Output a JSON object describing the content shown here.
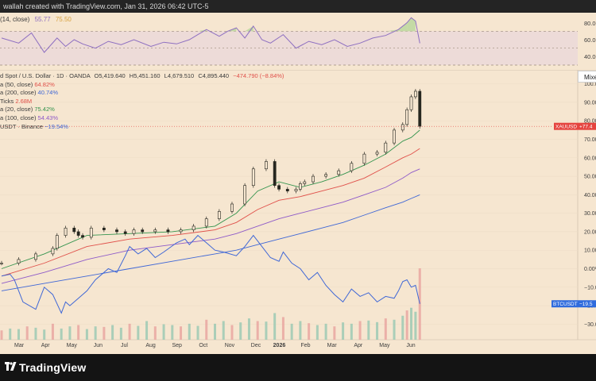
{
  "header": {
    "text": "wallah created with TradingView.com, Jan 31, 2026 06:42 UTC-5"
  },
  "rsi_panel": {
    "label": "(14, close)",
    "value": "55.77",
    "value2": "75.50",
    "axis": [
      "80.00",
      "60.00",
      "40.00"
    ],
    "colors": {
      "line": "#8e6fc1",
      "band": "#eddbd8",
      "overbought": "#b8d79a"
    }
  },
  "legend": {
    "main": {
      "name": "d Spot / U.S. Dollar · 1D · OANDA",
      "o_label": "O",
      "o": "5,419.640",
      "h_label": "H",
      "h": "5,451.160",
      "l_label": "L",
      "l": "4,679.510",
      "c_label": "C",
      "c": "4,895.440",
      "chg": "−474.790 (−8.84%)"
    },
    "ma50": {
      "name": "a (50, close)",
      "value": "64.82%",
      "color": "#e0504a"
    },
    "ma200": {
      "name": "a (200, close)",
      "value": "40.74%",
      "color": "#3f67d6"
    },
    "vol": {
      "name": "Ticks",
      "value": "2.68M",
      "color": "#e0504a"
    },
    "ma20": {
      "name": "a (20, close)",
      "value": "75.42%",
      "color": "#34944e"
    },
    "ma100": {
      "name": "a (100, close)",
      "value": "54.43%",
      "color": "#8e5ac8"
    },
    "btc": {
      "name": "USDT · Binance",
      "value": "−19.54%",
      "color": "#3f67d6"
    }
  },
  "toolbar": {
    "mixed": "Mixe"
  },
  "price_axis": [
    "100.00%",
    "90.00%",
    "80.00%",
    "70.00%",
    "60.00%",
    "50.00%",
    "40.00%",
    "30.00%",
    "20.00%",
    "10.00%",
    "0.00%",
    "−10.00%",
    "−20.00%",
    "−30.00%"
  ],
  "badges": {
    "xau": {
      "label": "XAUUSD",
      "value": "+77.4",
      "color": "#e5443f"
    },
    "btc": {
      "label": "BTCUSDT",
      "value": "−19.5",
      "color": "#2f6bdd"
    }
  },
  "time_axis": [
    "Mar",
    "Apr",
    "May",
    "Jun",
    "Jul",
    "Aug",
    "Sep",
    "Oct",
    "Nov",
    "Dec",
    "2026",
    "Feb",
    "Mar",
    "Apr",
    "May",
    "Jun"
  ],
  "footer": {
    "brand": "TradingView"
  },
  "chart_data": {
    "type": "line",
    "title": "",
    "x_axis_labels": [
      "Mar",
      "Apr",
      "May",
      "Jun",
      "Jul",
      "Aug",
      "Sep",
      "Oct",
      "Nov",
      "Dec",
      "2026",
      "Feb",
      "Mar",
      "Apr",
      "May",
      "Jun"
    ],
    "y_unit": "%",
    "ylim": [
      -35,
      105
    ],
    "y_ticks": [
      100,
      90,
      80,
      70,
      60,
      50,
      40,
      30,
      20,
      10,
      0,
      -10,
      -20,
      -30
    ],
    "x_domain": [
      0,
      100
    ],
    "series": [
      {
        "name": "XAUUSD",
        "kind": "candles",
        "color_up": "#26261f",
        "color_down": "#26261f",
        "x": [
          0,
          4,
          8,
          12,
          13,
          15,
          17,
          18,
          19,
          21,
          24,
          27,
          29,
          31,
          33,
          36,
          39,
          42,
          45,
          48,
          51,
          54,
          57,
          59,
          62,
          64,
          65,
          67,
          69,
          70,
          71,
          73,
          76,
          79,
          82,
          85,
          88,
          90,
          92,
          94,
          95,
          96,
          97,
          98
        ],
        "values": [
          3,
          5,
          8,
          11,
          18,
          22,
          20,
          18,
          17,
          22,
          21,
          20,
          19,
          21,
          20,
          21,
          20,
          21,
          23,
          27,
          31,
          35,
          45,
          54,
          58,
          45,
          43,
          42,
          43,
          46,
          47,
          50,
          51,
          53,
          57,
          62,
          63,
          68,
          75,
          78,
          86,
          93,
          96,
          77
        ]
      },
      {
        "name": "MA20",
        "color": "#34944e",
        "x": [
          0,
          10,
          20,
          30,
          40,
          50,
          55,
          60,
          65,
          70,
          75,
          80,
          85,
          90,
          94,
          96,
          98
        ],
        "values": [
          0,
          8,
          18,
          19,
          20,
          23,
          30,
          42,
          47,
          44,
          47,
          51,
          56,
          62,
          69,
          71,
          75
        ]
      },
      {
        "name": "MA50",
        "color": "#e0504a",
        "x": [
          0,
          10,
          20,
          30,
          40,
          50,
          55,
          60,
          65,
          70,
          75,
          80,
          85,
          90,
          94,
          96,
          98
        ],
        "values": [
          -4,
          3,
          12,
          16,
          18,
          21,
          25,
          32,
          37,
          39,
          42,
          45,
          49,
          55,
          60,
          62,
          65
        ]
      },
      {
        "name": "MA100",
        "color": "#8e5ac8",
        "x": [
          0,
          10,
          20,
          30,
          40,
          50,
          55,
          60,
          65,
          70,
          75,
          80,
          85,
          90,
          94,
          96,
          98
        ],
        "values": [
          -8,
          -2,
          5,
          10,
          13,
          16,
          19,
          23,
          27,
          30,
          33,
          36,
          40,
          44,
          49,
          52,
          54
        ]
      },
      {
        "name": "MA200",
        "color": "#3f67d6",
        "x": [
          0,
          10,
          20,
          30,
          40,
          50,
          55,
          60,
          65,
          70,
          75,
          80,
          85,
          90,
          94,
          96,
          98
        ],
        "values": [
          -12,
          -8,
          -4,
          0,
          4,
          8,
          10,
          13,
          16,
          19,
          22,
          25,
          29,
          33,
          36,
          38,
          40
        ]
      },
      {
        "name": "BTCUSDT",
        "color": "#3f67d6",
        "x": [
          0,
          2,
          3,
          5,
          8,
          10,
          12,
          14,
          15,
          16,
          18,
          20,
          22,
          25,
          27,
          29,
          30,
          32,
          34,
          36,
          38,
          41,
          43,
          44,
          46,
          48,
          50,
          52,
          55,
          57,
          59,
          61,
          63,
          65,
          66,
          68,
          70,
          72,
          74,
          76,
          78,
          80,
          82,
          84,
          86,
          88,
          90,
          92,
          93,
          94,
          95,
          96,
          97,
          98
        ],
        "values": [
          -4,
          -3,
          -6,
          -18,
          -22,
          -10,
          -14,
          -24,
          -18,
          -20,
          -16,
          -12,
          -6,
          0,
          -2,
          7,
          12,
          8,
          11,
          6,
          9,
          14,
          16,
          13,
          18,
          14,
          10,
          9,
          7,
          12,
          18,
          12,
          6,
          4,
          9,
          3,
          0,
          -6,
          -2,
          -9,
          -14,
          -18,
          -11,
          -15,
          -13,
          -18,
          -15,
          -16,
          -12,
          -7,
          -6,
          -10,
          -9,
          -19
        ]
      }
    ],
    "volume": {
      "x": [
        0,
        2,
        4,
        6,
        8,
        10,
        12,
        14,
        16,
        18,
        20,
        22,
        24,
        26,
        28,
        30,
        32,
        34,
        36,
        38,
        40,
        42,
        44,
        46,
        48,
        50,
        52,
        54,
        56,
        58,
        60,
        62,
        64,
        66,
        68,
        70,
        72,
        74,
        76,
        78,
        80,
        82,
        84,
        86,
        88,
        90,
        92,
        94,
        95,
        96,
        97,
        98
      ],
      "values": [
        0.35,
        0.42,
        0.4,
        0.5,
        0.45,
        0.38,
        0.6,
        0.42,
        0.5,
        0.55,
        0.4,
        0.5,
        0.48,
        0.55,
        0.45,
        0.6,
        0.52,
        0.7,
        0.5,
        0.58,
        0.55,
        0.5,
        0.6,
        0.52,
        0.75,
        0.6,
        0.7,
        0.55,
        0.65,
        0.8,
        0.7,
        0.68,
        1.0,
        0.85,
        0.6,
        0.7,
        0.62,
        0.55,
        0.6,
        0.5,
        0.65,
        0.6,
        0.7,
        0.72,
        0.66,
        0.8,
        0.75,
        0.9,
        1.1,
        1.2,
        1.05,
        2.68
      ],
      "max": 2.68
    },
    "rsi": {
      "x": [
        0,
        4,
        7,
        10,
        13,
        15,
        17,
        19,
        22,
        25,
        28,
        31,
        35,
        38,
        41,
        44,
        46,
        48,
        51,
        53,
        55,
        57,
        59,
        61,
        63,
        66,
        69,
        72,
        75,
        78,
        81,
        84,
        87,
        90,
        93,
        95,
        96,
        97,
        98
      ],
      "values": [
        62,
        56,
        68,
        45,
        62,
        52,
        60,
        55,
        50,
        58,
        54,
        60,
        52,
        57,
        55,
        60,
        66,
        72,
        64,
        70,
        74,
        62,
        76,
        60,
        56,
        66,
        50,
        58,
        54,
        60,
        52,
        56,
        62,
        65,
        72,
        80,
        86,
        82,
        55.77
      ],
      "levels": [
        70,
        50,
        30
      ]
    }
  }
}
